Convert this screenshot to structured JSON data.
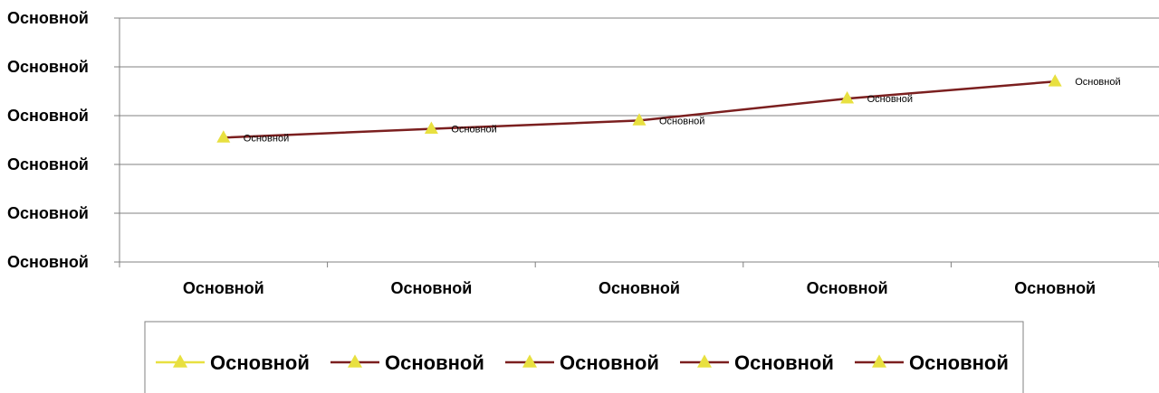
{
  "chart_data": {
    "type": "line",
    "categories": [
      "Основной",
      "Основной",
      "Основной",
      "Основной",
      "Основной"
    ],
    "y_tick_labels": [
      "Основной",
      "Основной",
      "Основной",
      "Основной",
      "Основной",
      "Основной"
    ],
    "ylim": [
      0,
      5
    ],
    "grid": true,
    "legend_position": "bottom",
    "series": [
      {
        "values": [
          2.55,
          2.73,
          2.9,
          3.35,
          3.7
        ],
        "data_labels": [
          "Основной",
          "Основной",
          "Основной",
          "Основной",
          "Основной"
        ],
        "line_color": "#7B1F1F",
        "marker": "triangle",
        "marker_color": "#E8E040"
      }
    ],
    "legend": {
      "entries": [
        {
          "label": "Основной",
          "line_color": "#E8E040",
          "marker_color": "#E8E040"
        },
        {
          "label": "Основной",
          "line_color": "#7B1F1F",
          "marker_color": "#E8E040"
        },
        {
          "label": "Основной",
          "line_color": "#7B1F1F",
          "marker_color": "#E8E040"
        },
        {
          "label": "Основной",
          "line_color": "#7B1F1F",
          "marker_color": "#E8E040"
        },
        {
          "label": "Основной",
          "line_color": "#7B1F1F",
          "marker_color": "#E8E040"
        }
      ]
    }
  }
}
